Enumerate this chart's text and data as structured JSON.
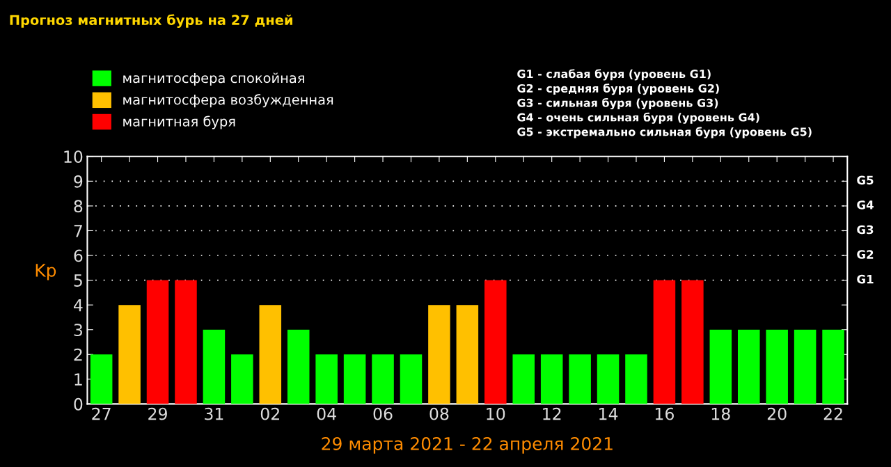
{
  "chart_data": {
    "type": "bar",
    "title": "Прогноз магнитных бурь на 27 дней",
    "xlabel": "29 марта 2021 - 22 апреля 2021",
    "ylabel": "Kp",
    "categories": [
      "27",
      null,
      "29",
      null,
      "31",
      null,
      "02",
      null,
      "04",
      null,
      "06",
      null,
      "08",
      null,
      "10",
      null,
      "12",
      null,
      "14",
      null,
      "16",
      null,
      "18",
      null,
      "20",
      null,
      "22"
    ],
    "series": [
      {
        "name": "магнитосфера спокойная",
        "color": "#00ff00",
        "values": [
          2,
          null,
          null,
          null,
          3,
          2,
          null,
          3,
          2,
          2,
          2,
          2,
          null,
          null,
          null,
          2,
          2,
          2,
          2,
          2,
          null,
          null,
          3,
          3,
          3,
          3,
          3
        ]
      },
      {
        "name": "магнитосфера возбужденная",
        "color": "#ffc000",
        "values": [
          null,
          4,
          null,
          null,
          null,
          null,
          4,
          null,
          null,
          null,
          null,
          null,
          4,
          4,
          null,
          null,
          null,
          null,
          null,
          null,
          null,
          null,
          null,
          null,
          null,
          null,
          null
        ]
      },
      {
        "name": "магнитная буря",
        "color": "#ff0000",
        "values": [
          null,
          null,
          5,
          5,
          null,
          null,
          null,
          null,
          null,
          null,
          null,
          null,
          null,
          null,
          5,
          null,
          null,
          null,
          null,
          null,
          5,
          5,
          null,
          null,
          null,
          null,
          null
        ]
      }
    ],
    "ylim": [
      0,
      10
    ],
    "yticks": [
      0,
      1,
      2,
      3,
      4,
      5,
      6,
      7,
      8,
      9,
      10
    ],
    "ref_lines": [
      {
        "axis": "y",
        "value": 5,
        "label": "G1",
        "color": "#ffffff",
        "line_style": "dotted"
      },
      {
        "axis": "y",
        "value": 6,
        "label": "G2",
        "color": "#ffffff",
        "line_style": "dotted"
      },
      {
        "axis": "y",
        "value": 7,
        "label": "G3",
        "color": "#ffffff",
        "line_style": "dotted"
      },
      {
        "axis": "y",
        "value": 8,
        "label": "G4",
        "color": "#ffffff",
        "line_style": "dotted"
      },
      {
        "axis": "y",
        "value": 9,
        "label": "G5",
        "color": "#ffffff",
        "line_style": "dotted"
      }
    ],
    "annotations": [
      "G1 - слабая буря (уровень G1)",
      "G2 - средняя буря (уровень G2)",
      "G3 - сильная буря (уровень G3)",
      "G4 - очень сильная буря (уровень G4)",
      "G5 - экстремально сильная буря (уровень G5)"
    ],
    "legend": "top left",
    "grid": false
  }
}
